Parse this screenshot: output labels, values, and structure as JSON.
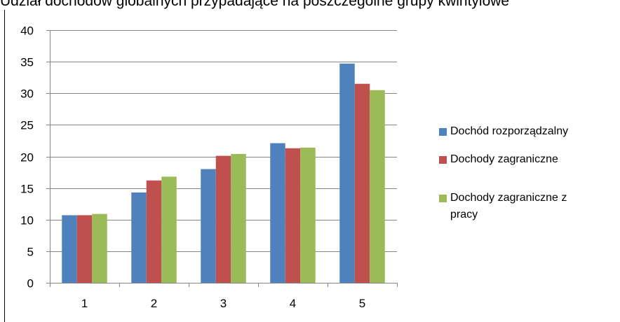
{
  "title": "Udział dochodów globalnych przypadające na poszczególne grupy kwintylowe",
  "chart_data": {
    "type": "bar",
    "categories": [
      "1",
      "2",
      "3",
      "4",
      "5"
    ],
    "series": [
      {
        "name": "Dochód rozporządzalny",
        "values": [
          10.7,
          14.3,
          18.0,
          22.1,
          34.7
        ],
        "color": "#4F81BD"
      },
      {
        "name": "Dochody zagraniczne",
        "values": [
          10.7,
          16.2,
          20.1,
          21.3,
          31.5
        ],
        "color": "#C0504D"
      },
      {
        "name": "Dochody zagraniczne z pracy",
        "values": [
          10.9,
          16.8,
          20.4,
          21.4,
          30.5
        ],
        "color": "#9BBB59"
      }
    ],
    "yticks": [
      "0",
      "5",
      "10",
      "15",
      "20",
      "25",
      "30",
      "35",
      "40"
    ],
    "ylim": [
      0,
      40
    ],
    "grid": true,
    "legend": "right"
  }
}
